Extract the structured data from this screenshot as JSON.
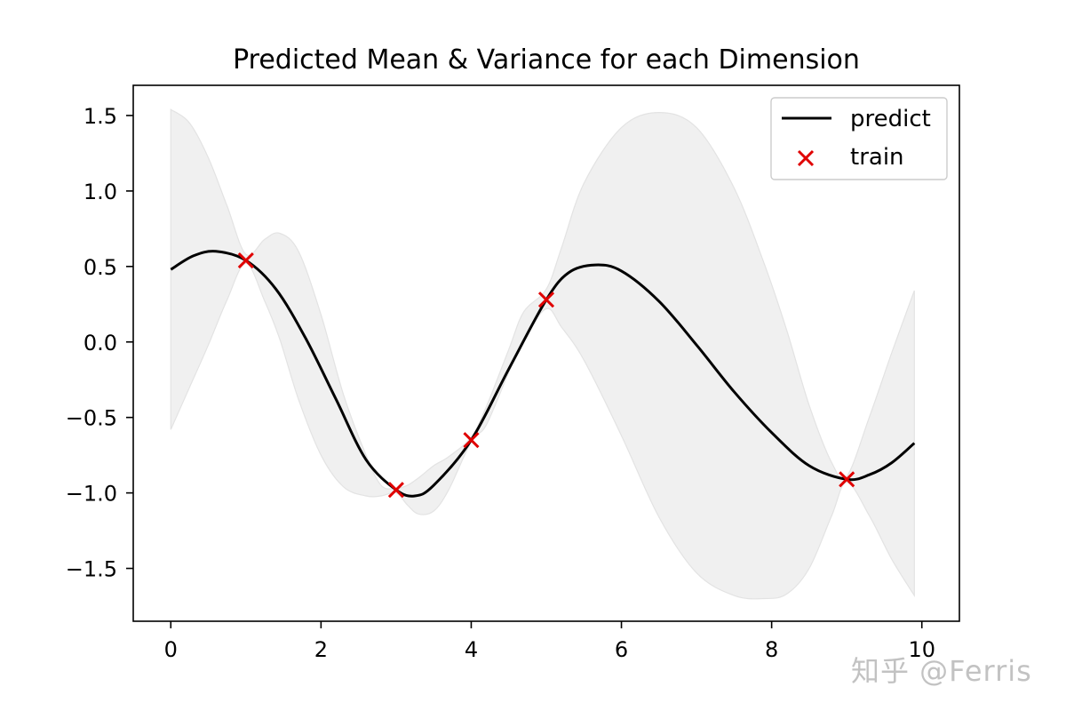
{
  "chart_data": {
    "type": "line",
    "title": "Predicted Mean & Variance for each Dimension",
    "xlim": [
      -0.5,
      10.5
    ],
    "ylim": [
      -1.85,
      1.7
    ],
    "xticks": [
      0,
      2,
      4,
      6,
      8,
      10
    ],
    "xtick_labels": [
      "0",
      "2",
      "4",
      "6",
      "8",
      "10"
    ],
    "yticks": [
      1.5,
      1.0,
      0.5,
      0.0,
      -0.5,
      -1.0,
      -1.5
    ],
    "ytick_labels": [
      "1.5",
      "1.0",
      "0.5",
      "0.0",
      "−0.5",
      "−1.0",
      "−1.5"
    ],
    "grid": false,
    "legend_position": "top-right",
    "series": [
      {
        "name": "predict",
        "style": "line",
        "color": "#000000",
        "x": [
          0,
          0.3,
          0.6,
          1.0,
          1.4,
          1.8,
          2.2,
          2.6,
          3.0,
          3.25,
          3.5,
          4.0,
          4.5,
          5.0,
          5.3,
          5.65,
          6.0,
          6.5,
          7.0,
          7.5,
          8.0,
          8.5,
          9.0,
          9.3,
          9.6,
          9.9
        ],
        "y": [
          0.48,
          0.57,
          0.6,
          0.54,
          0.35,
          0.02,
          -0.38,
          -0.78,
          -0.98,
          -1.02,
          -0.95,
          -0.65,
          -0.18,
          0.28,
          0.46,
          0.51,
          0.47,
          0.27,
          -0.02,
          -0.33,
          -0.6,
          -0.82,
          -0.91,
          -0.88,
          -0.8,
          -0.67
        ]
      },
      {
        "name": "train",
        "style": "scatter",
        "marker": "x",
        "color": "#e00000",
        "x": [
          1,
          3,
          4,
          5,
          9
        ],
        "y": [
          0.54,
          -0.98,
          -0.65,
          0.28,
          -0.91
        ]
      }
    ],
    "confidence_band": {
      "color": "#f0f0f0",
      "edge_color": "#e3e3e3",
      "x": [
        0,
        0.25,
        0.5,
        0.75,
        1.0,
        1.25,
        1.45,
        1.7,
        2.0,
        2.3,
        2.6,
        2.8,
        3.0,
        3.15,
        3.3,
        3.5,
        3.7,
        4.0,
        4.2,
        4.5,
        4.7,
        5.0,
        5.2,
        5.5,
        6.0,
        6.5,
        7.0,
        7.5,
        7.9,
        8.2,
        8.5,
        8.8,
        9.0,
        9.3,
        9.6,
        9.9
      ],
      "upper": [
        1.54,
        1.45,
        1.22,
        0.9,
        0.58,
        0.68,
        0.72,
        0.6,
        0.18,
        -0.35,
        -0.75,
        -0.95,
        -0.97,
        -0.95,
        -0.9,
        -0.82,
        -0.76,
        -0.63,
        -0.43,
        -0.05,
        0.2,
        0.35,
        0.62,
        1.05,
        1.42,
        1.52,
        1.42,
        1.02,
        0.52,
        0.08,
        -0.42,
        -0.8,
        -0.89,
        -0.5,
        -0.07,
        0.34
      ],
      "lower": [
        -0.58,
        -0.3,
        -0.02,
        0.28,
        0.52,
        0.27,
        0.02,
        -0.38,
        -0.75,
        -0.96,
        -1.02,
        -1.02,
        -1.0,
        -1.08,
        -1.14,
        -1.12,
        -0.98,
        -0.66,
        -0.55,
        -0.2,
        0.02,
        0.22,
        0.1,
        -0.12,
        -0.62,
        -1.16,
        -1.53,
        -1.68,
        -1.7,
        -1.67,
        -1.5,
        -1.15,
        -0.93,
        -1.15,
        -1.44,
        -1.68
      ]
    }
  },
  "watermark": {
    "text": "知乎 @Ferris"
  }
}
